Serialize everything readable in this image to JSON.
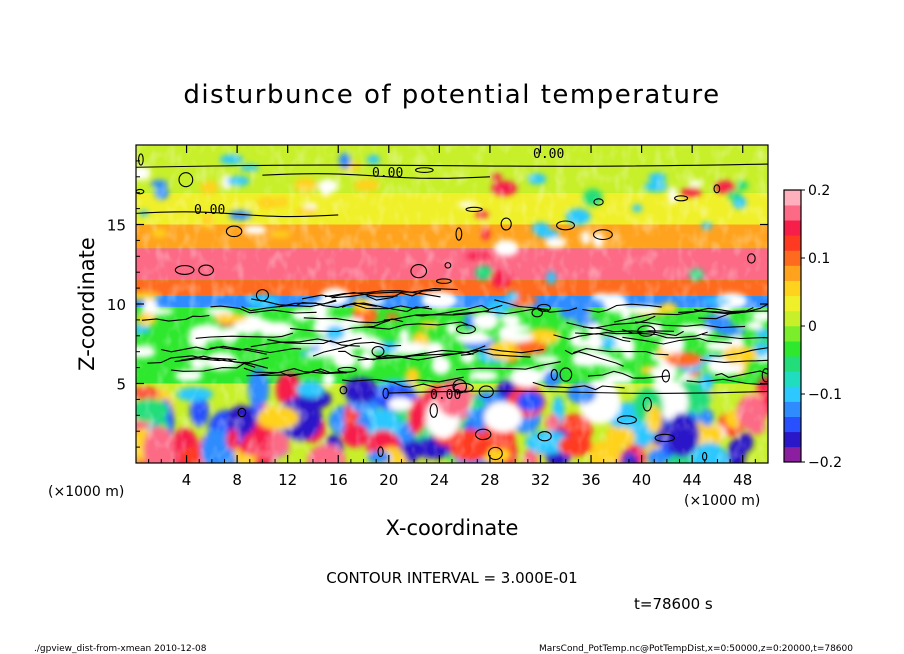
{
  "chart_data": {
    "type": "heatmap",
    "title": "disturbunce of potential temperature",
    "xlabel": "X-coordinate",
    "ylabel": "Z-coordinate",
    "x_unit": "(×1000 m)",
    "z_unit": "(×1000 m)",
    "xlim": [
      0,
      50
    ],
    "ylim": [
      0,
      20
    ],
    "x_ticks": [
      4,
      8,
      12,
      16,
      20,
      24,
      28,
      32,
      36,
      40,
      44,
      48
    ],
    "y_ticks": [
      5,
      10,
      15
    ],
    "colorbar": {
      "range": [
        -0.2,
        0.2
      ],
      "ticks": [
        "0.2",
        "0.1",
        "0",
        "−0.1",
        "−0.2"
      ],
      "tick_values": [
        0.2,
        0.1,
        0,
        -0.1,
        -0.2
      ],
      "colors": [
        "#8b1fa0",
        "#2a18c8",
        "#2850ff",
        "#2f8cff",
        "#2cc8ff",
        "#20ddc0",
        "#22dd7a",
        "#2ee82e",
        "#7aee2a",
        "#c8f02a",
        "#f0f02a",
        "#ffd21e",
        "#ffa31e",
        "#ff6b1e",
        "#ff3a22",
        "#f71f4a",
        "#fc6a86",
        "#ffb0bc"
      ]
    },
    "contour_labels": [
      "0.00",
      "0.00",
      "0.00",
      "0.00"
    ],
    "bands": [
      {
        "z": [
          17.0,
          20.0
        ],
        "value": 0.02
      },
      {
        "z": [
          15.0,
          17.0
        ],
        "value": 0.04
      },
      {
        "z": [
          13.5,
          15.0
        ],
        "value": 0.08
      },
      {
        "z": [
          11.5,
          13.5
        ],
        "value": 0.17
      },
      {
        "z": [
          10.5,
          11.5
        ],
        "value": 0.09
      },
      {
        "z": [
          9.8,
          10.5
        ],
        "value": -0.12
      },
      {
        "z": [
          5.0,
          9.8
        ],
        "value": -0.03
      },
      {
        "z": [
          0.0,
          5.0
        ],
        "value": 0.0
      }
    ],
    "contour_interval_text": "CONTOUR INTERVAL = 3.000E-01",
    "time_text": "t=78600 s"
  },
  "footer": {
    "left": "./gpview_dist-from-xmean  2010-12-08",
    "right": "MarsCond_PotTemp.nc@PotTempDist,x=0:50000,z=0:20000,t=78600"
  }
}
